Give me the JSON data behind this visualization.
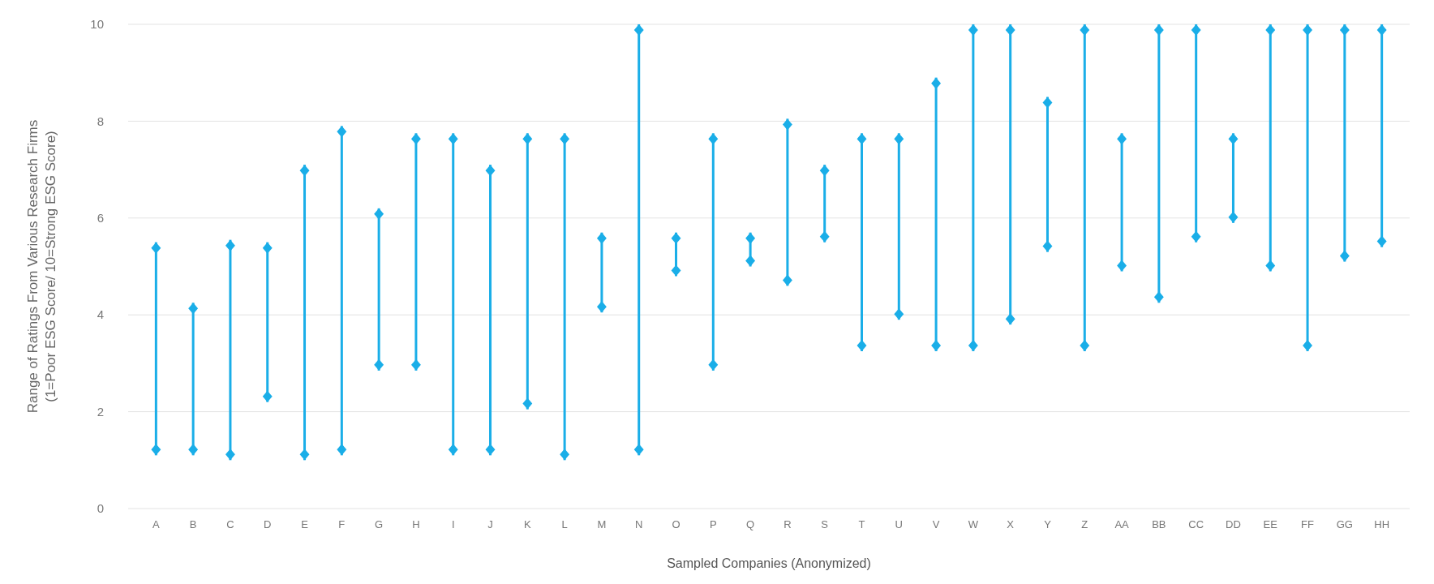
{
  "chart_data": {
    "type": "bar",
    "xlabel": "Sampled Companies (Anonymized)",
    "ylabel": "Range of Ratings From Various Research Firms\n(1=Poor ESG Score/ 10=Strong ESG Score)",
    "categories": [
      "A",
      "B",
      "C",
      "D",
      "E",
      "F",
      "G",
      "H",
      "I",
      "J",
      "K",
      "L",
      "M",
      "N",
      "O",
      "P",
      "Q",
      "R",
      "S",
      "T",
      "U",
      "V",
      "W",
      "X",
      "Y",
      "Z",
      "AA",
      "BB",
      "CC",
      "DD",
      "EE",
      "FF",
      "GG",
      "HH"
    ],
    "base": [
      1.1,
      1.1,
      1.0,
      2.2,
      1.0,
      1.1,
      2.85,
      2.85,
      1.1,
      1.1,
      2.05,
      1.0,
      4.05,
      1.1,
      4.8,
      2.85,
      5.0,
      4.6,
      5.5,
      3.25,
      3.9,
      3.25,
      3.25,
      3.8,
      5.3,
      3.25,
      4.9,
      4.25,
      5.5,
      5.9,
      4.9,
      3.25,
      5.1,
      5.4
    ],
    "values": [
      4.4,
      3.15,
      4.55,
      3.3,
      6.1,
      6.8,
      3.35,
      4.9,
      6.65,
      6.0,
      5.7,
      6.75,
      1.65,
      8.9,
      0.9,
      4.9,
      0.7,
      3.45,
      1.6,
      4.5,
      3.85,
      5.65,
      6.75,
      6.2,
      3.2,
      6.75,
      2.85,
      5.75,
      4.5,
      1.85,
      5.1,
      6.75,
      4.9,
      4.6
    ],
    "color": "#1aaee8",
    "marker": "diamond",
    "ylim": [
      0,
      10
    ],
    "yticks": [
      0,
      2,
      4,
      6,
      8,
      10
    ],
    "grid": "y"
  }
}
